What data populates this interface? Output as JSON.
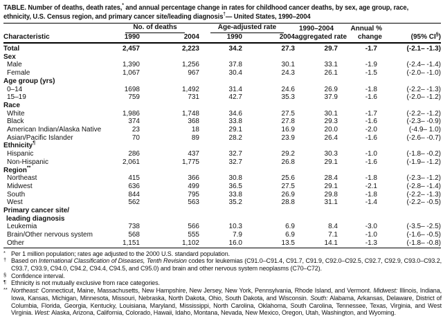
{
  "title": {
    "line1_pre": "TABLE. Number of deaths, death rates,",
    "line1_sup": "*",
    "line1_post": " and annual percentage change in rates for childhood cancer deaths, by sex, age group, race,",
    "line2_pre": "ethnicity, U.S. Census region, and primary cancer site/leading diagnosis",
    "line2_sup": "†",
    "line2_post": "— United States, 1990–2004"
  },
  "table": {
    "headers": {
      "characteristic": "Characteristic",
      "group_deaths": "No. of deaths",
      "group_rate": "Age-adjusted rate",
      "deaths_1990": "1990",
      "deaths_2004": "2004",
      "rate_1990": "1990",
      "rate_2004": "2004",
      "aggregated_line1": "1990–2004",
      "aggregated_line2": "aggregated rate",
      "annual_line1": "Annual %",
      "annual_line2": "change",
      "ci_pre": "(95% CI",
      "ci_sup": "§",
      "ci_post": ")"
    },
    "columns": [
      "deaths-1990",
      "deaths-2004",
      "rate-1990",
      "rate-2004",
      "aggregated-rate",
      "annual-change",
      "ci"
    ],
    "rows": [
      {
        "label": "Total",
        "type": "total",
        "v": [
          "2,457",
          "2,223",
          "34.2",
          "27.3",
          "29.7",
          "-1.7",
          "(-2.1– -1.3)"
        ]
      },
      {
        "label": "Sex",
        "type": "section"
      },
      {
        "label": "Male",
        "type": "data",
        "v": [
          "1,390",
          "1,256",
          "37.8",
          "30.1",
          "33.1",
          "-1.9",
          "(-2.4– -1.4)"
        ]
      },
      {
        "label": "Female",
        "type": "data",
        "v": [
          "1,067",
          "967",
          "30.4",
          "24.3",
          "26.1",
          "-1.5",
          "(-2.0– -1.0)"
        ]
      },
      {
        "label": "Age group (yrs)",
        "type": "section"
      },
      {
        "label": "0–14",
        "type": "data",
        "v": [
          "1698",
          "1,492",
          "31.4",
          "24.6",
          "26.9",
          "-1.8",
          "(-2.2– -1.3)"
        ]
      },
      {
        "label": "15–19",
        "type": "data",
        "v": [
          "759",
          "731",
          "42.7",
          "35.3",
          "37.9",
          "-1.6",
          "(-2.0– -1.2)"
        ]
      },
      {
        "label": "Race",
        "type": "section"
      },
      {
        "label": "White",
        "type": "data",
        "v": [
          "1,986",
          "1,748",
          "34.6",
          "27.5",
          "30.1",
          "-1.7",
          "(-2.2– -1.2)"
        ]
      },
      {
        "label": "Black",
        "type": "data",
        "v": [
          "374",
          "368",
          "33.8",
          "27.8",
          "29.3",
          "-1.6",
          "(-2.3– -0.9)"
        ]
      },
      {
        "label": "American Indian/Alaska Native",
        "type": "data",
        "v": [
          "23",
          "18",
          "29.1",
          "16.9",
          "20.0",
          "-2.0",
          "(-4.9– 1.0)"
        ]
      },
      {
        "label": "Asian/Pacific Islander",
        "type": "data",
        "v": [
          "70",
          "89",
          "28.2",
          "23.9",
          "26.4",
          "-1.6",
          "(-2.6– -0.7)"
        ]
      },
      {
        "label": "Ethnicity",
        "sup": "¶",
        "type": "section"
      },
      {
        "label": "Hispanic",
        "type": "data",
        "v": [
          "286",
          "437",
          "32.7",
          "29.2",
          "30.3",
          "-1.0",
          "(-1.8– -0.2)"
        ]
      },
      {
        "label": "Non-Hispanic",
        "type": "data",
        "v": [
          "2,061",
          "1,775",
          "32.7",
          "26.8",
          "29.1",
          "-1.6",
          "(-1.9– -1.2)"
        ]
      },
      {
        "label": "Region",
        "sup": "**",
        "type": "section"
      },
      {
        "label": "Northeast",
        "type": "data",
        "v": [
          "415",
          "366",
          "30.8",
          "25.6",
          "28.4",
          "-1.8",
          "(-2.3– -1.2)"
        ]
      },
      {
        "label": "Midwest",
        "type": "data",
        "v": [
          "636",
          "499",
          "36.5",
          "27.5",
          "29.1",
          "-2.1",
          "(-2.8– -1.4)"
        ]
      },
      {
        "label": "South",
        "type": "data",
        "v": [
          "844",
          "795",
          "33.8",
          "26.9",
          "29.8",
          "-1.8",
          "(-2.2– -1.3)"
        ]
      },
      {
        "label": "West",
        "type": "data",
        "v": [
          "562",
          "563",
          "35.2",
          "28.8",
          "31.1",
          "-1.4",
          "(-2.2– -0.5)"
        ]
      },
      {
        "label": "Primary cancer site/",
        "label2": "leading diagnosis",
        "type": "section"
      },
      {
        "label": "Leukemia",
        "type": "data",
        "v": [
          "738",
          "566",
          "10.3",
          "6.9",
          "8.4",
          "-3.0",
          "(-3.5– -2.5)"
        ]
      },
      {
        "label": "Brain/Other nervous system",
        "type": "data",
        "v": [
          "568",
          "555",
          "7.9",
          "6.9",
          "7.1",
          "-1.0",
          "(-1.6– -0.5)"
        ]
      },
      {
        "label": "Other",
        "type": "data",
        "v": [
          "1,151",
          "1,102",
          "16.0",
          "13.5",
          "14.1",
          "-1.3",
          "(-1.8– -0.8)"
        ]
      }
    ]
  },
  "footnotes": [
    {
      "sym": "*",
      "segments": [
        {
          "t": "Per 1 million population; rates age adjusted to the 2000 U.S. standard population."
        }
      ]
    },
    {
      "sym": "†",
      "segments": [
        {
          "t": "Based on "
        },
        {
          "t": "International Classification of Diseases, Tenth Revision",
          "i": true
        },
        {
          "t": " codes for leukemias (C91.0–C91.4, C91.7, C91.9, C92.0–C92.5, C92.7, C92.9, C93.0–C93.2, C93.7, C93.9, C94.0, C94.2, C94.4, C94.5, and C95.0) and brain and other nervous system neoplasms (C70–C72)."
        }
      ]
    },
    {
      "sym": "§",
      "segments": [
        {
          "t": "Confidence interval."
        }
      ]
    },
    {
      "sym": "¶",
      "segments": [
        {
          "t": "Ethnicity is not mutually exclusive from race categories."
        }
      ]
    },
    {
      "sym": "**",
      "segments": [
        {
          "t": "Northeast:",
          "i": true
        },
        {
          "t": " Connecticut, Maine, Massachusetts, New Hampshire, New Jersey, New York, Pennsylvania, Rhode Island, and Vermont. "
        },
        {
          "t": "Midwest:",
          "i": true
        },
        {
          "t": " Illinois, Indiana, Iowa, Kansas, Michigan, Minnesota, Missouri, Nebraska, North Dakota, Ohio, South Dakota, and Wisconsin. "
        },
        {
          "t": "South:",
          "i": true
        },
        {
          "t": " Alabama, Arkansas, Delaware, District of Columbia, Florida, Georgia, Kentucky, Louisiana, Maryland, Mississippi, North Carolina, Oklahoma, South Carolina, Tennessee, Texas, Virginia, and West Virginia. "
        },
        {
          "t": "West:",
          "i": true
        },
        {
          "t": " Alaska, Arizona, California, Colorado, Hawaii, Idaho, Montana, Nevada, New Mexico, Oregon, Utah, Washington, and Wyoming."
        }
      ]
    }
  ]
}
